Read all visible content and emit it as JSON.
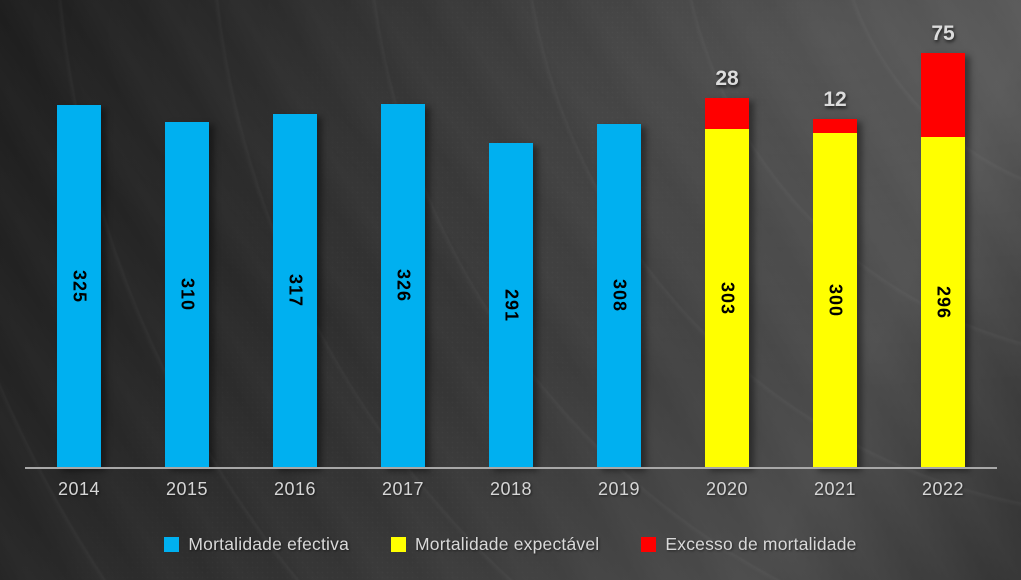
{
  "chart_data": {
    "type": "bar",
    "stacked": true,
    "title": "",
    "xlabel": "",
    "ylabel": "",
    "categories": [
      "2014",
      "2015",
      "2016",
      "2017",
      "2018",
      "2019",
      "2020",
      "2021",
      "2022"
    ],
    "series": [
      {
        "name": "Mortalidade efectiva",
        "color": "#00B0F0",
        "label_placement": "inside-vertical",
        "values": [
          325,
          310,
          317,
          326,
          291,
          308,
          null,
          null,
          null
        ]
      },
      {
        "name": "Mortalidade expectável",
        "color": "#FFFF00",
        "label_placement": "inside-vertical",
        "values": [
          null,
          null,
          null,
          null,
          null,
          null,
          303,
          300,
          296
        ]
      },
      {
        "name": "Excesso de mortalidade",
        "color": "#FF0000",
        "label_placement": "above",
        "values": [
          null,
          null,
          null,
          null,
          null,
          null,
          28,
          12,
          75
        ]
      }
    ],
    "ylim": [
      0,
      400
    ],
    "grid": false,
    "y_axis_visible": false,
    "x_axis_line_color": "#A8A8A8",
    "tick_label_color": "#D6D6D6",
    "inside_label_color": "#000000",
    "above_label_color": "#DCDCDC",
    "legend_position": "bottom",
    "background_style": "dark-gray-gradient"
  }
}
